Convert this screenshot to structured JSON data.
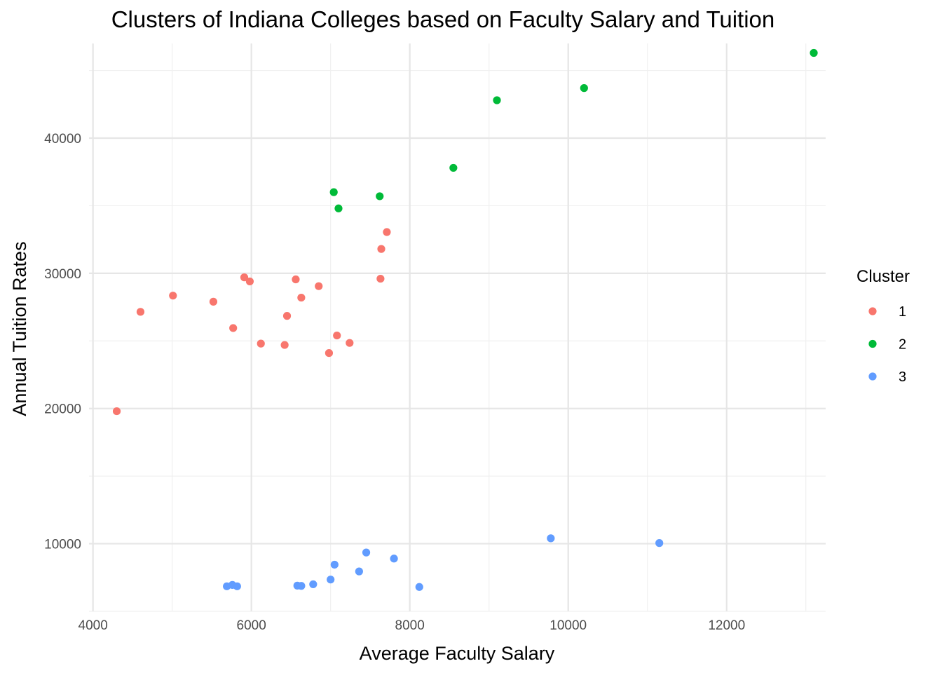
{
  "chart_data": {
    "type": "scatter",
    "title": "Clusters of Indiana Colleges based on Faculty Salary and Tuition",
    "xlabel": "Average Faculty Salary",
    "ylabel": "Annual Tuition Rates",
    "xlim": [
      3950,
      13250
    ],
    "ylim": [
      5000,
      47000
    ],
    "x_ticks": [
      4000,
      6000,
      8000,
      10000,
      12000
    ],
    "y_ticks": [
      10000,
      20000,
      30000,
      40000
    ],
    "x_tick_labels": [
      "4000",
      "6000",
      "8000",
      "10000",
      "12000"
    ],
    "y_tick_labels": [
      "10000",
      "20000",
      "30000",
      "40000"
    ],
    "grid": true,
    "legend": {
      "title": "Cluster",
      "placement": "right"
    },
    "series": [
      {
        "name": "1",
        "color": "#F8766D",
        "points": [
          {
            "x": 4300,
            "y": 19800
          },
          {
            "x": 4600,
            "y": 27150
          },
          {
            "x": 5010,
            "y": 28350
          },
          {
            "x": 5520,
            "y": 27900
          },
          {
            "x": 5770,
            "y": 25950
          },
          {
            "x": 5910,
            "y": 29700
          },
          {
            "x": 5980,
            "y": 29400
          },
          {
            "x": 6120,
            "y": 24800
          },
          {
            "x": 6420,
            "y": 24700
          },
          {
            "x": 6450,
            "y": 26850
          },
          {
            "x": 6560,
            "y": 29550
          },
          {
            "x": 6630,
            "y": 28200
          },
          {
            "x": 6850,
            "y": 29050
          },
          {
            "x": 6980,
            "y": 24100
          },
          {
            "x": 7080,
            "y": 25400
          },
          {
            "x": 7240,
            "y": 24850
          },
          {
            "x": 7630,
            "y": 29600
          },
          {
            "x": 7640,
            "y": 31800
          },
          {
            "x": 7710,
            "y": 33050
          }
        ]
      },
      {
        "name": "2",
        "color": "#00BA38",
        "points": [
          {
            "x": 7040,
            "y": 36000
          },
          {
            "x": 7100,
            "y": 34800
          },
          {
            "x": 7620,
            "y": 35700
          },
          {
            "x": 8550,
            "y": 37800
          },
          {
            "x": 9100,
            "y": 42800
          },
          {
            "x": 10200,
            "y": 43700
          },
          {
            "x": 13100,
            "y": 46300
          }
        ]
      },
      {
        "name": "3",
        "color": "#619CFF",
        "points": [
          {
            "x": 5690,
            "y": 6850
          },
          {
            "x": 5760,
            "y": 6950
          },
          {
            "x": 5820,
            "y": 6850
          },
          {
            "x": 6580,
            "y": 6900
          },
          {
            "x": 6630,
            "y": 6880
          },
          {
            "x": 6780,
            "y": 7000
          },
          {
            "x": 7000,
            "y": 7350
          },
          {
            "x": 7050,
            "y": 8450
          },
          {
            "x": 7360,
            "y": 7950
          },
          {
            "x": 7450,
            "y": 9350
          },
          {
            "x": 7800,
            "y": 8900
          },
          {
            "x": 8120,
            "y": 6800
          },
          {
            "x": 9780,
            "y": 10400
          },
          {
            "x": 11150,
            "y": 10050
          }
        ]
      }
    ]
  }
}
